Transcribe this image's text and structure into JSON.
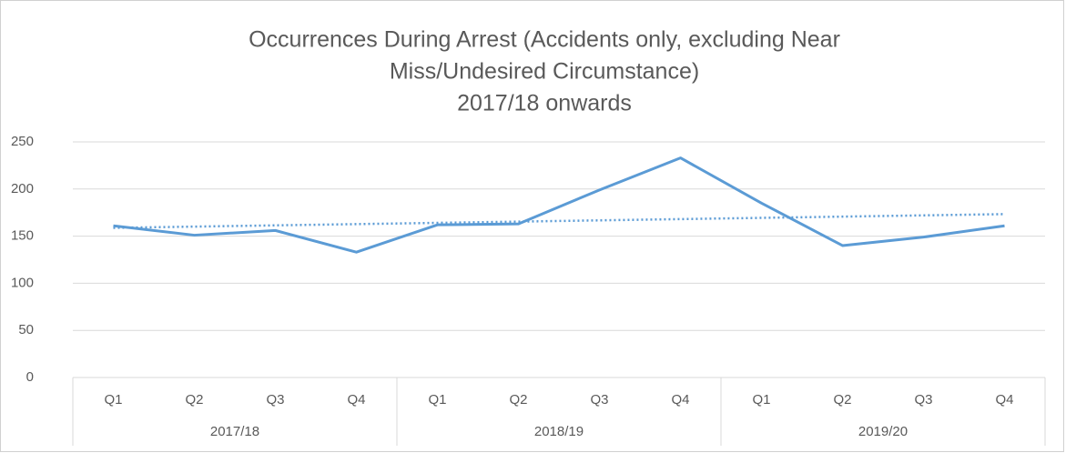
{
  "chart_data": {
    "type": "line",
    "title": [
      "Occurrences During Arrest (Accidents only, excluding Near",
      "Miss/Undesired Circumstance)",
      "2017/18 onwards"
    ],
    "categories": [
      "Q1",
      "Q2",
      "Q3",
      "Q4",
      "Q1",
      "Q2",
      "Q3",
      "Q4",
      "Q1",
      "Q2",
      "Q3",
      "Q4"
    ],
    "groups": [
      "2017/18",
      "2018/19",
      "2019/20"
    ],
    "values": [
      161,
      151,
      156,
      133,
      162,
      163,
      199,
      233,
      185,
      140,
      149,
      161
    ],
    "color": "#5b9bd5",
    "trendline": "linear",
    "ylim": [
      0,
      250
    ],
    "yticks": [
      0,
      50,
      100,
      150,
      200,
      250
    ],
    "grid": true
  }
}
